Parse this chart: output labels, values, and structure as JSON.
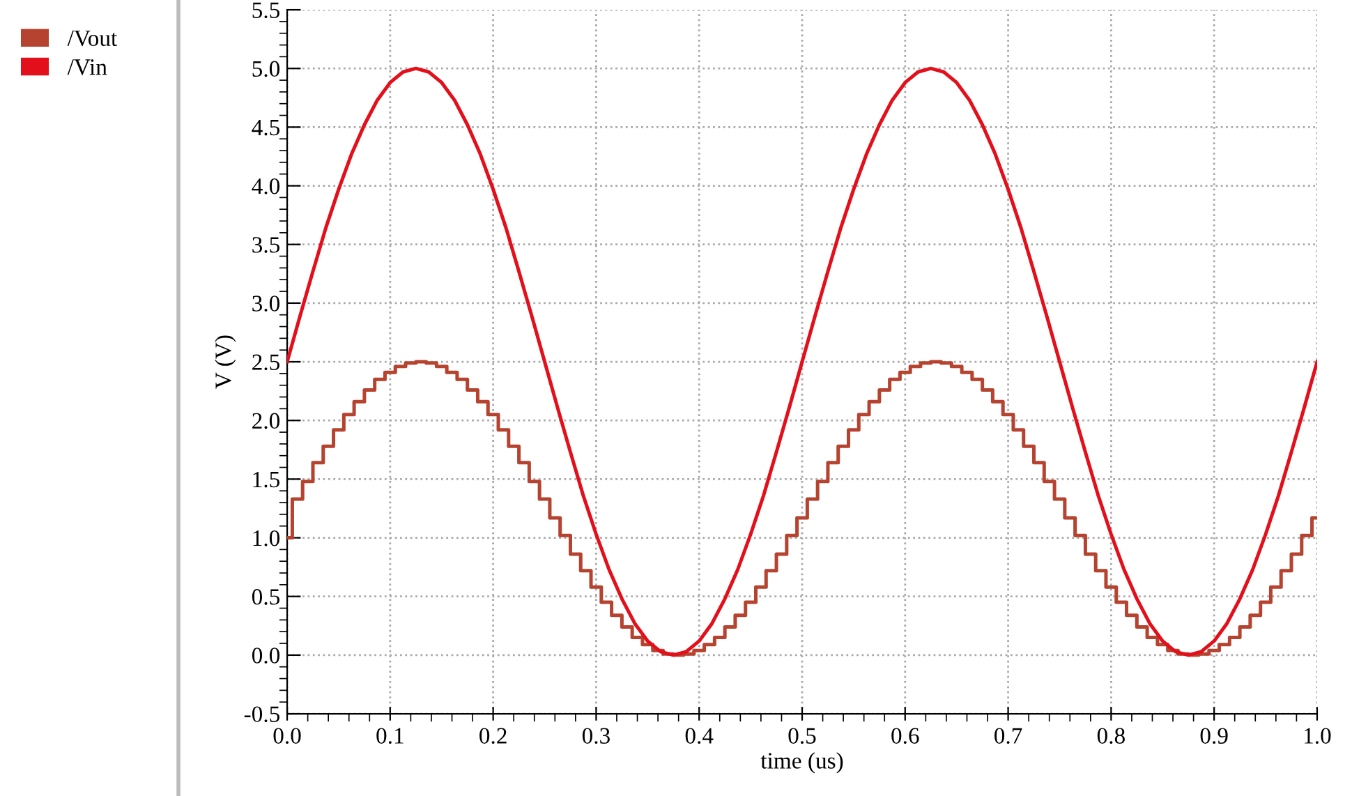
{
  "chart_data": {
    "type": "line",
    "xlabel": "time (us)",
    "ylabel": "V (V)",
    "xlim": [
      0.0,
      1.0
    ],
    "xticks": [
      {
        "value": 0,
        "label": "0.0"
      },
      0.1,
      0.2,
      0.3,
      0.4,
      0.5,
      0.6,
      0.7,
      0.8,
      0.9,
      {
        "value": 1,
        "label": "1.0"
      }
    ],
    "ylim": [
      -0.5,
      5.5
    ],
    "yticks": [
      -0.5,
      {
        "value": 0,
        "label": "0.0"
      },
      0.5,
      {
        "value": 1,
        "label": "1.0"
      },
      1.5,
      {
        "value": 2,
        "label": "2.0"
      },
      2.5,
      {
        "value": 3,
        "label": "3.0"
      },
      3.5,
      {
        "value": 4,
        "label": "4.0"
      },
      4.5,
      {
        "value": 5,
        "label": "5.0"
      },
      5.5
    ],
    "grid": true,
    "legend": "top left",
    "marker": "none",
    "line_style": "solid",
    "series": [
      {
        "name": "/Vout",
        "type": "step",
        "color": "#b5432f",
        "x": [
          0.0,
          0.005,
          0.015,
          0.025,
          0.035,
          0.045,
          0.055,
          0.065,
          0.075,
          0.085,
          0.095,
          0.105,
          0.115,
          0.125,
          0.135,
          0.145,
          0.155,
          0.165,
          0.175,
          0.185,
          0.195,
          0.205,
          0.215,
          0.225,
          0.235,
          0.245,
          0.255,
          0.265,
          0.275,
          0.285,
          0.295,
          0.305,
          0.315,
          0.325,
          0.335,
          0.345,
          0.355,
          0.365,
          0.375,
          0.385,
          0.395,
          0.405,
          0.415,
          0.425,
          0.435,
          0.445,
          0.455,
          0.465,
          0.475,
          0.485,
          0.495,
          0.505,
          0.515,
          0.525,
          0.535,
          0.545,
          0.555,
          0.565,
          0.575,
          0.585,
          0.595,
          0.605,
          0.615,
          0.625,
          0.635,
          0.645,
          0.655,
          0.665,
          0.675,
          0.685,
          0.695,
          0.705,
          0.715,
          0.725,
          0.735,
          0.745,
          0.755,
          0.765,
          0.775,
          0.785,
          0.795,
          0.805,
          0.815,
          0.825,
          0.835,
          0.845,
          0.855,
          0.865,
          0.875,
          0.885,
          0.895,
          0.905,
          0.915,
          0.925,
          0.935,
          0.945,
          0.955,
          0.965,
          0.975,
          0.985,
          0.995,
          1.0
        ],
        "values": [
          1.0,
          1.33,
          1.48,
          1.64,
          1.78,
          1.92,
          2.05,
          2.16,
          2.26,
          2.35,
          2.41,
          2.46,
          2.49,
          2.5,
          2.49,
          2.46,
          2.41,
          2.35,
          2.26,
          2.16,
          2.05,
          1.92,
          1.78,
          1.64,
          1.48,
          1.33,
          1.17,
          1.02,
          0.86,
          0.72,
          0.58,
          0.45,
          0.34,
          0.24,
          0.15,
          0.09,
          0.04,
          0.01,
          0.0,
          0.01,
          0.04,
          0.09,
          0.15,
          0.24,
          0.34,
          0.45,
          0.58,
          0.72,
          0.86,
          1.02,
          1.17,
          1.33,
          1.48,
          1.64,
          1.78,
          1.92,
          2.05,
          2.16,
          2.26,
          2.35,
          2.41,
          2.46,
          2.49,
          2.5,
          2.49,
          2.46,
          2.41,
          2.35,
          2.26,
          2.16,
          2.05,
          1.92,
          1.78,
          1.64,
          1.48,
          1.33,
          1.17,
          1.02,
          0.86,
          0.72,
          0.58,
          0.45,
          0.34,
          0.24,
          0.15,
          0.09,
          0.04,
          0.01,
          0.0,
          0.01,
          0.04,
          0.09,
          0.15,
          0.24,
          0.34,
          0.45,
          0.58,
          0.72,
          0.86,
          1.02,
          1.17,
          1.17
        ]
      },
      {
        "name": "/Vin",
        "type": "line",
        "color": "#e3101c",
        "x": [
          0.0,
          0.0125,
          0.025,
          0.0375,
          0.05,
          0.0625,
          0.075,
          0.0875,
          0.1,
          0.1125,
          0.125,
          0.1375,
          0.15,
          0.1625,
          0.175,
          0.1875,
          0.2,
          0.2125,
          0.225,
          0.2375,
          0.25,
          0.2625,
          0.275,
          0.2875,
          0.3,
          0.3125,
          0.325,
          0.3375,
          0.35,
          0.3625,
          0.375,
          0.3875,
          0.4,
          0.4125,
          0.425,
          0.4375,
          0.45,
          0.4625,
          0.475,
          0.4875,
          0.5,
          0.5125,
          0.525,
          0.5375,
          0.55,
          0.5625,
          0.575,
          0.5875,
          0.6,
          0.6125,
          0.625,
          0.6375,
          0.65,
          0.6625,
          0.675,
          0.6875,
          0.7,
          0.7125,
          0.725,
          0.7375,
          0.75,
          0.7625,
          0.775,
          0.7875,
          0.8,
          0.8125,
          0.825,
          0.8375,
          0.85,
          0.8625,
          0.875,
          0.8875,
          0.9,
          0.9125,
          0.925,
          0.9375,
          0.95,
          0.9625,
          0.975,
          0.9875,
          1.0
        ],
        "values": [
          2.5,
          2.89,
          3.27,
          3.64,
          3.97,
          4.27,
          4.52,
          4.73,
          4.88,
          4.97,
          5.0,
          4.97,
          4.88,
          4.73,
          4.52,
          4.27,
          3.97,
          3.64,
          3.27,
          2.89,
          2.5,
          2.11,
          1.73,
          1.36,
          1.03,
          0.73,
          0.48,
          0.27,
          0.12,
          0.03,
          0.0,
          0.03,
          0.12,
          0.27,
          0.48,
          0.73,
          1.03,
          1.36,
          1.73,
          2.11,
          2.5,
          2.89,
          3.27,
          3.64,
          3.97,
          4.27,
          4.52,
          4.73,
          4.88,
          4.97,
          5.0,
          4.97,
          4.88,
          4.73,
          4.52,
          4.27,
          3.97,
          3.64,
          3.27,
          2.89,
          2.5,
          2.11,
          1.73,
          1.36,
          1.03,
          0.73,
          0.48,
          0.27,
          0.12,
          0.03,
          0.0,
          0.03,
          0.12,
          0.27,
          0.48,
          0.73,
          1.03,
          1.36,
          1.73,
          2.11,
          2.5
        ]
      }
    ]
  }
}
